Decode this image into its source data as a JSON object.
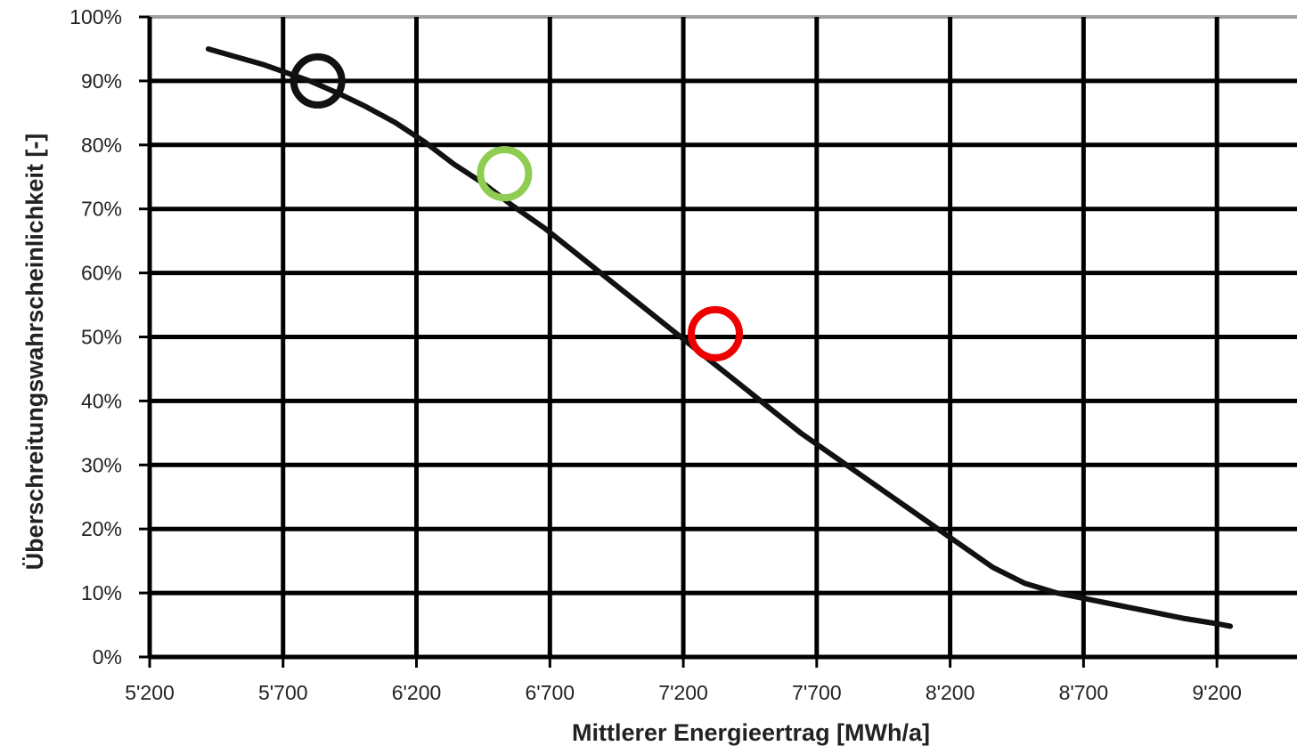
{
  "chart_data": {
    "type": "line",
    "xlabel": "Mittlerer Energieertrag [MWh/a]",
    "ylabel": "Überschreitungswahrscheinlichkeit [-]",
    "xlim": [
      5200,
      9500
    ],
    "ylim": [
      0,
      100
    ],
    "x_ticks": [
      5200,
      5700,
      6200,
      6700,
      7200,
      7700,
      8200,
      8700,
      9200
    ],
    "x_tick_labels": [
      "5'200",
      "5'700",
      "6'200",
      "6'700",
      "7'200",
      "7'700",
      "8'200",
      "8'700",
      "9'200"
    ],
    "y_ticks": [
      0,
      10,
      20,
      30,
      40,
      50,
      60,
      70,
      80,
      90,
      100
    ],
    "y_tick_labels": [
      "0%",
      "10%",
      "20%",
      "30%",
      "40%",
      "50%",
      "60%",
      "70%",
      "80%",
      "90%",
      "100%"
    ],
    "grid": true,
    "series": [
      {
        "color": "#111111",
        "x": [
          5420,
          5630,
          5800,
          5910,
          6010,
          6120,
          6230,
          6340,
          6450,
          6560,
          6680,
          6800,
          6920,
          7040,
          7160,
          7280,
          7400,
          7520,
          7640,
          7760,
          7880,
          8000,
          8120,
          8240,
          8360,
          8480,
          8600,
          8720,
          8840,
          8960,
          9080,
          9200,
          9250
        ],
        "y": [
          95,
          92.5,
          90,
          88,
          86,
          83.5,
          80.5,
          77,
          74,
          70.5,
          67,
          63,
          59,
          55,
          51,
          47,
          43,
          39,
          35,
          31.5,
          28,
          24.5,
          21,
          17.5,
          14,
          11.5,
          10,
          9,
          8,
          7,
          6,
          5.2,
          4.8
        ]
      }
    ],
    "markers": [
      {
        "x": 5830,
        "y": 90,
        "color": "#111111"
      },
      {
        "x": 6530,
        "y": 75.5,
        "color": "#8fcc52"
      },
      {
        "x": 7320,
        "y": 50.5,
        "color": "#ee0000"
      }
    ],
    "style": {
      "grid_color": "#000000",
      "top_border_color": "#a0a0a0"
    }
  }
}
